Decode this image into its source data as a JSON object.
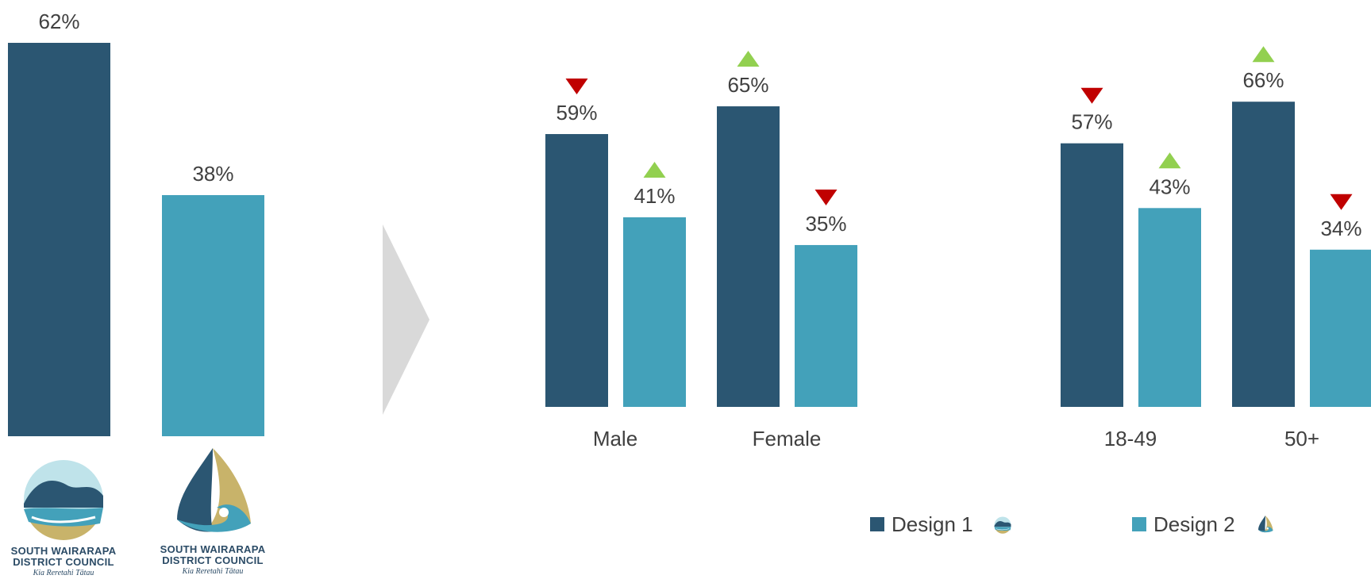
{
  "chart_data": [
    {
      "type": "bar",
      "categories": [
        "Design 1",
        "Design 2"
      ],
      "values": [
        62,
        38
      ],
      "value_labels": [
        "62%",
        "38%"
      ],
      "colors": [
        "#2b5672",
        "#43a1ba"
      ],
      "ylim": [
        0,
        100
      ],
      "logo_captions": [
        {
          "line1": "SOUTH WAIRARAPA",
          "line2": "DISTRICT COUNCIL",
          "tagline": "Kia Reretahi Tātau"
        },
        {
          "line1": "SOUTH WAIRARAPA",
          "line2": "DISTRICT COUNCIL",
          "tagline": "Kia Reretahi Tātau"
        }
      ]
    },
    {
      "type": "bar",
      "categories": [
        "Male",
        "Female"
      ],
      "series": [
        {
          "name": "Design 1",
          "values": [
            59,
            65
          ],
          "labels": [
            "59%",
            "65%"
          ],
          "markers": [
            "down",
            "up"
          ]
        },
        {
          "name": "Design 2",
          "values": [
            41,
            35
          ],
          "labels": [
            "41%",
            "35%"
          ],
          "markers": [
            "up",
            "down"
          ]
        }
      ],
      "ylim": [
        0,
        100
      ]
    },
    {
      "type": "bar",
      "categories": [
        "18-49",
        "50+"
      ],
      "series": [
        {
          "name": "Design 1",
          "values": [
            57,
            66
          ],
          "labels": [
            "57%",
            "66%"
          ],
          "markers": [
            "down",
            "up"
          ]
        },
        {
          "name": "Design 2",
          "values": [
            43,
            34
          ],
          "labels": [
            "43%",
            "34%"
          ],
          "markers": [
            "up",
            "down"
          ]
        }
      ],
      "ylim": [
        0,
        100
      ]
    }
  ],
  "legend": [
    {
      "label": "Design 1",
      "color": "#2b5672"
    },
    {
      "label": "Design 2",
      "color": "#43a1ba"
    }
  ],
  "colors": {
    "design1": "#2b5672",
    "design2": "#43a1ba",
    "up": "#92d050",
    "down": "#c00000",
    "arrow": "#d9d9d9"
  }
}
